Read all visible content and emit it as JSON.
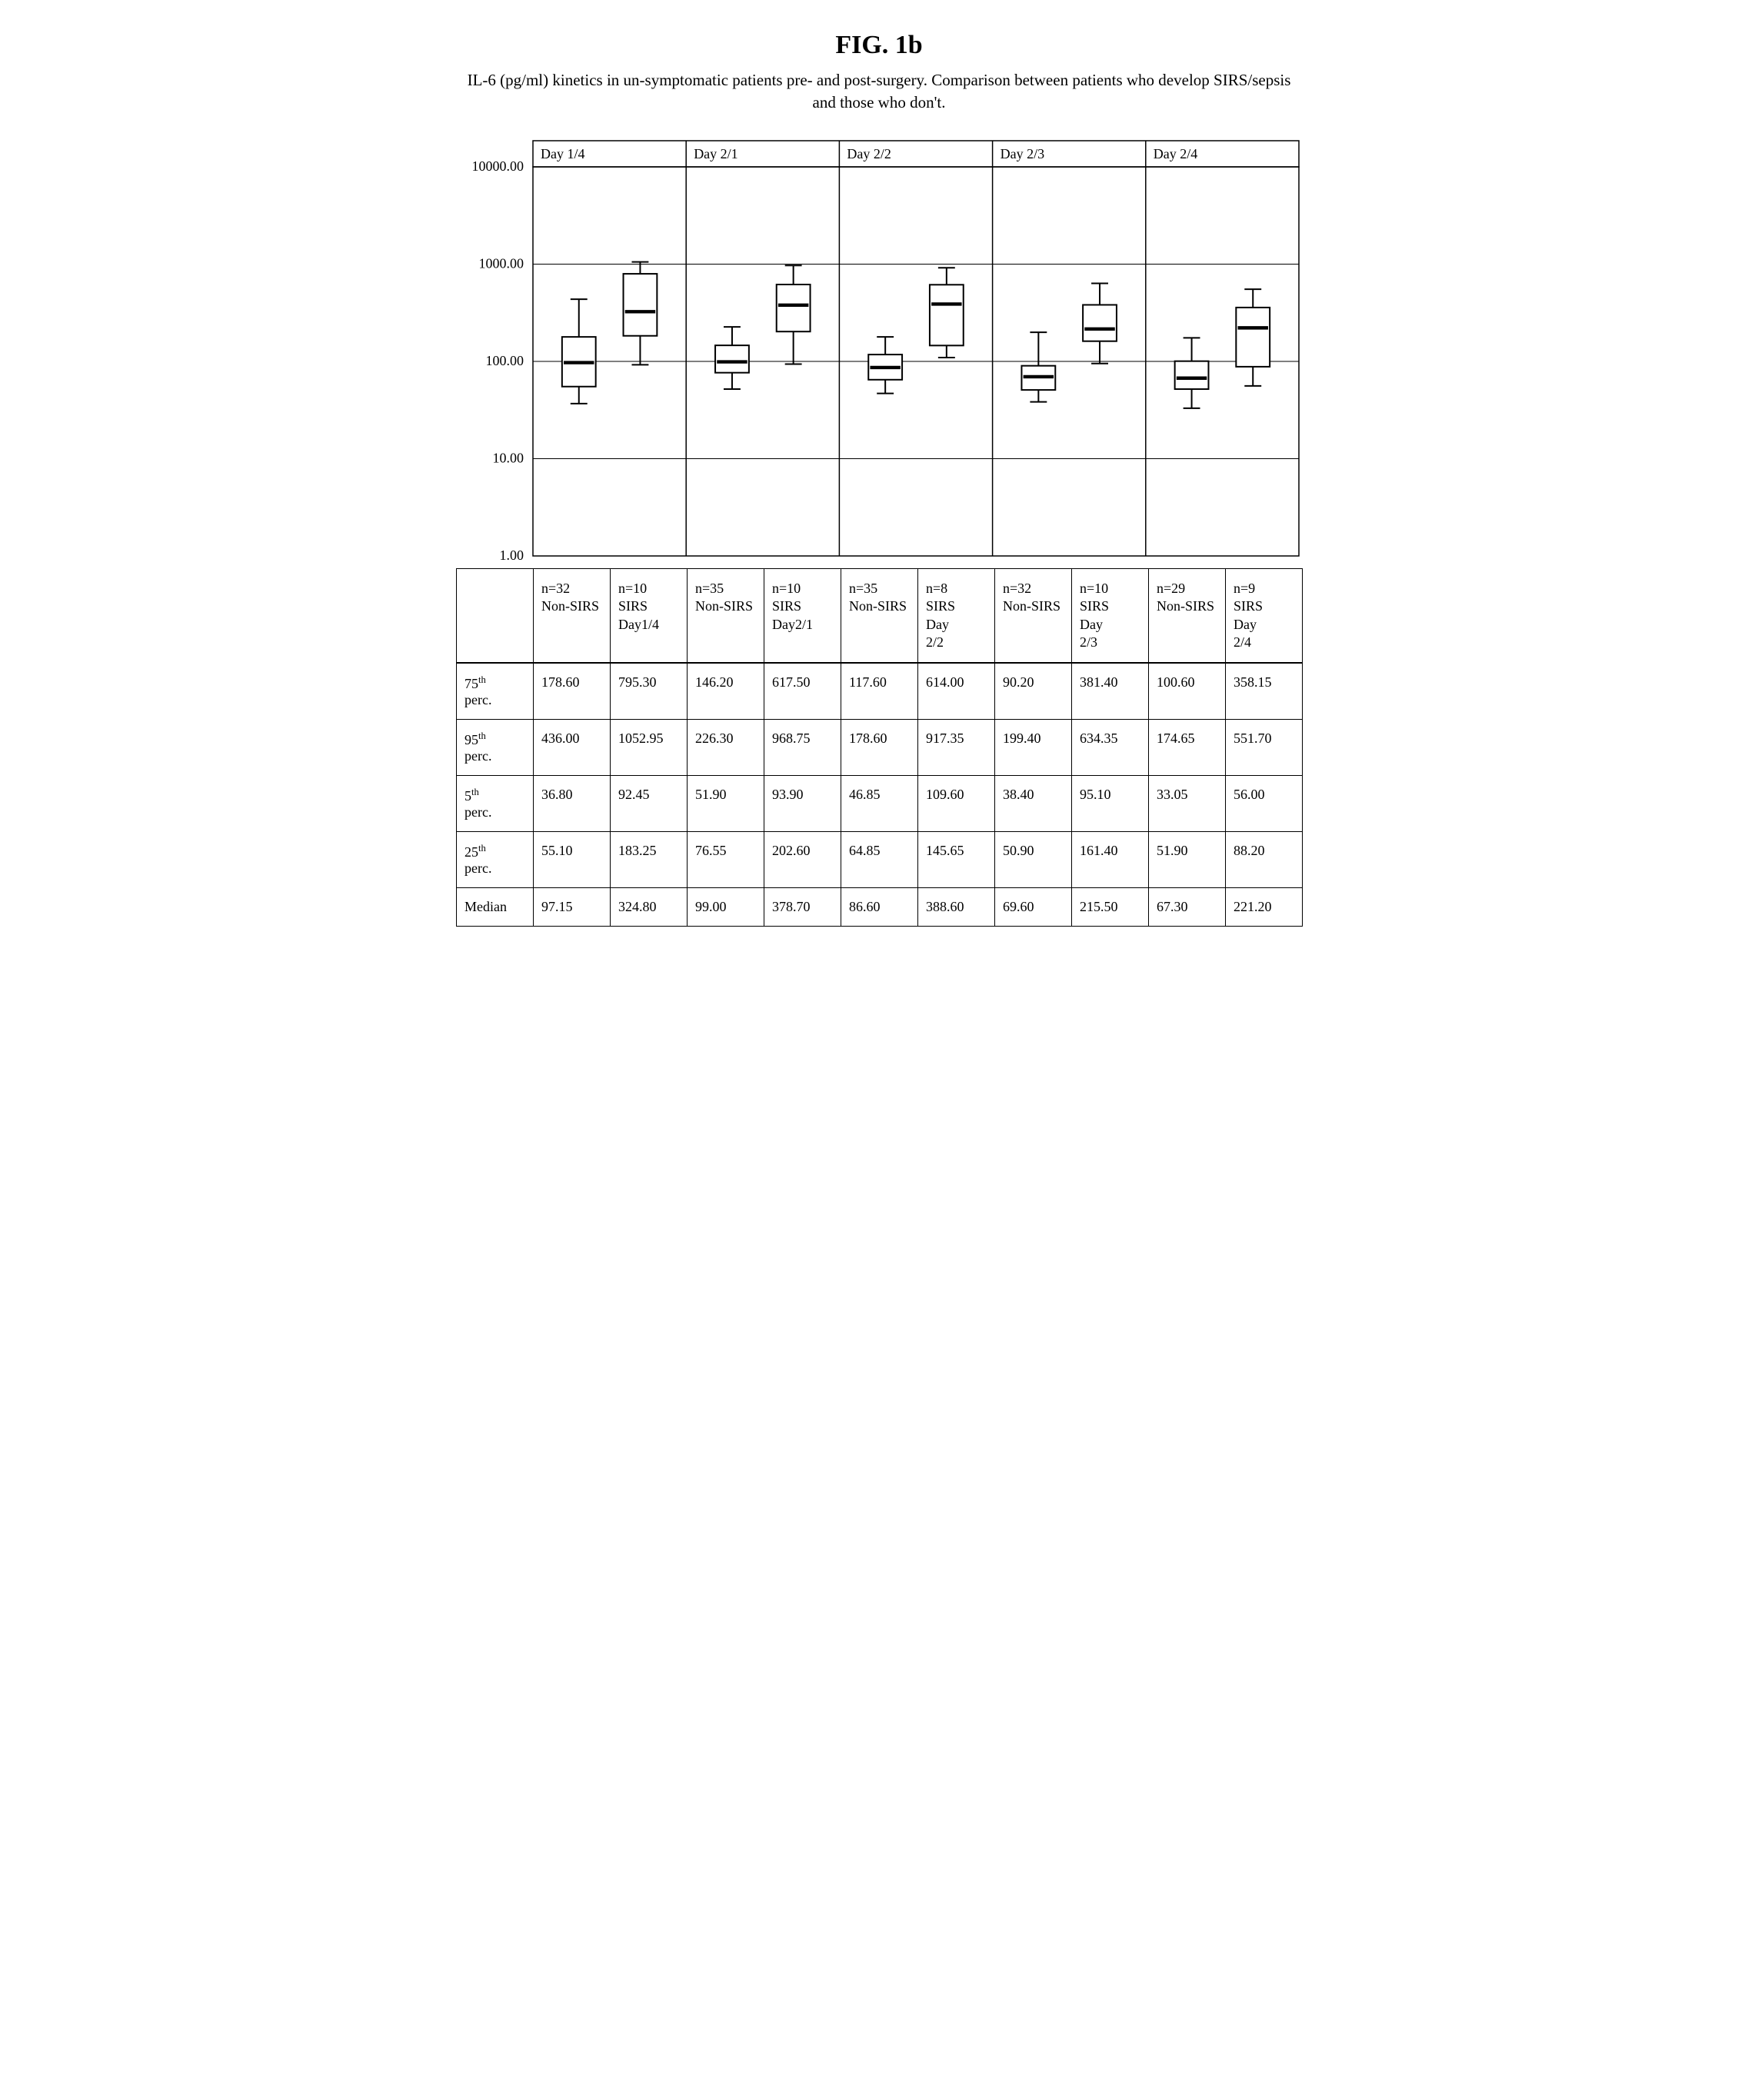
{
  "figure": {
    "title": "FIG. 1b",
    "subtitle": "IL-6 (pg/ml) kinetics in un-symptomatic patients pre- and post-surgery. Comparison between patients who develop SIRS/sepsis and those who don't."
  },
  "chart": {
    "type": "boxplot",
    "y_scale": "log",
    "y_min": 1.0,
    "y_max": 10000.0,
    "y_tick_labels": [
      "1.00",
      "10.00",
      "100.00",
      "1000.00",
      "10000.00"
    ],
    "y_tick_values": [
      1,
      10,
      100,
      1000,
      10000
    ],
    "background_color": "#ffffff",
    "gridline_color": "#000000",
    "panel_border_color": "#000000",
    "box_fill": "#ffffff",
    "box_stroke": "#000000",
    "whisker_stroke": "#000000",
    "line_width": 2,
    "panel_label_fontsize": 18,
    "tick_fontsize": 18,
    "panels": [
      {
        "label": "Day 1/4",
        "boxes": [
          {
            "p5": 36.8,
            "p25": 55.1,
            "median": 97.15,
            "p75": 178.6,
            "p95": 436.0
          },
          {
            "p5": 92.45,
            "p25": 183.25,
            "median": 324.8,
            "p75": 795.3,
            "p95": 1052.95
          }
        ]
      },
      {
        "label": "Day 2/1",
        "boxes": [
          {
            "p5": 51.9,
            "p25": 76.55,
            "median": 99.0,
            "p75": 146.2,
            "p95": 226.3
          },
          {
            "p5": 93.9,
            "p25": 202.6,
            "median": 378.7,
            "p75": 617.5,
            "p95": 968.75
          }
        ]
      },
      {
        "label": "Day 2/2",
        "boxes": [
          {
            "p5": 46.85,
            "p25": 64.85,
            "median": 86.6,
            "p75": 117.6,
            "p95": 178.6
          },
          {
            "p5": 109.6,
            "p25": 145.65,
            "median": 388.6,
            "p75": 614.0,
            "p95": 917.35
          }
        ]
      },
      {
        "label": "Day 2/3",
        "boxes": [
          {
            "p5": 38.4,
            "p25": 50.9,
            "median": 69.6,
            "p75": 90.2,
            "p95": 199.4
          },
          {
            "p5": 95.1,
            "p25": 161.4,
            "median": 215.5,
            "p75": 381.4,
            "p95": 634.35
          }
        ]
      },
      {
        "label": "Day 2/4",
        "boxes": [
          {
            "p5": 33.05,
            "p25": 51.9,
            "median": 67.3,
            "p75": 100.6,
            "p95": 174.65
          },
          {
            "p5": 56.0,
            "p25": 88.2,
            "median": 221.2,
            "p75": 358.15,
            "p95": 551.7
          }
        ]
      }
    ]
  },
  "column_headers": [
    "n=32 Non-SIRS",
    "n=10 SIRS Day1/4",
    "n=35 Non-SIRS",
    "n=10 SIRS Day2/1",
    "n=35 Non-SIRS",
    "n=8 SIRS Day 2/2",
    "n=32 Non-SIRS",
    "n=10 SIRS Day 2/3",
    "n=29 Non-SIRS",
    "n=9 SIRS Day 2/4"
  ],
  "table": {
    "row_labels_html": [
      "75<sup>th</sup> perc.",
      "95<sup>th</sup> perc.",
      "5<sup>th</sup> perc.",
      "25<sup>th</sup> perc.",
      "Median"
    ],
    "rows": [
      [
        "178.60",
        "795.30",
        "146.20",
        "617.50",
        "117.60",
        "614.00",
        "90.20",
        "381.40",
        "100.60",
        "358.15"
      ],
      [
        "436.00",
        "1052.95",
        "226.30",
        "968.75",
        "178.60",
        "917.35",
        "199.40",
        "634.35",
        "174.65",
        "551.70"
      ],
      [
        "36.80",
        "92.45",
        "51.90",
        "93.90",
        "46.85",
        "109.60",
        "38.40",
        "95.10",
        "33.05",
        "56.00"
      ],
      [
        "55.10",
        "183.25",
        "76.55",
        "202.60",
        "64.85",
        "145.65",
        "50.90",
        "161.40",
        "51.90",
        "88.20"
      ],
      [
        "97.15",
        "324.80",
        "99.00",
        "378.70",
        "86.60",
        "388.60",
        "69.60",
        "215.50",
        "67.30",
        "221.20"
      ]
    ]
  }
}
